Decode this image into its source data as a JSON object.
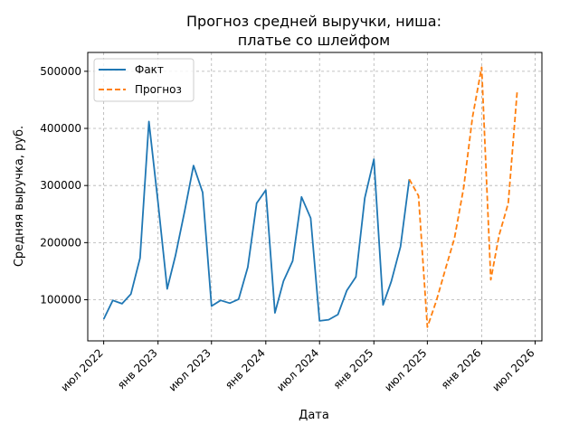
{
  "chart_data": {
    "type": "line",
    "title_lines": [
      "Прогноз средней выручки, ниша:",
      "платье со шлейфом"
    ],
    "xlabel": "Дата",
    "ylabel": "Средняя выручка, руб.",
    "xlim": [
      "2022-05-08",
      "2026-07-24"
    ],
    "ylim": [
      28000,
      533000
    ],
    "x_ticks": [
      {
        "date": "2022-07-01",
        "label": "июл 2022"
      },
      {
        "date": "2023-01-01",
        "label": "янв 2023"
      },
      {
        "date": "2023-07-01",
        "label": "июл 2023"
      },
      {
        "date": "2024-01-01",
        "label": "янв 2024"
      },
      {
        "date": "2024-07-01",
        "label": "июл 2024"
      },
      {
        "date": "2025-01-01",
        "label": "янв 2025"
      },
      {
        "date": "2025-07-01",
        "label": "июл 2025"
      },
      {
        "date": "2026-01-01",
        "label": "янв 2026"
      },
      {
        "date": "2026-07-01",
        "label": "июл 2026"
      }
    ],
    "y_ticks": [
      100000,
      200000,
      300000,
      400000,
      500000
    ],
    "grid": true,
    "legend_position": "top-left",
    "series": [
      {
        "name": "Факт",
        "color": "#1f77b4",
        "style": "solid",
        "points": [
          [
            "2022-07-01",
            66000
          ],
          [
            "2022-08-01",
            99000
          ],
          [
            "2022-09-01",
            93000
          ],
          [
            "2022-10-01",
            110000
          ],
          [
            "2022-11-01",
            173000
          ],
          [
            "2022-12-01",
            412000
          ],
          [
            "2023-01-01",
            270000
          ],
          [
            "2023-02-01",
            119000
          ],
          [
            "2023-03-01",
            177000
          ],
          [
            "2023-04-01",
            255000
          ],
          [
            "2023-05-01",
            335000
          ],
          [
            "2023-06-01",
            288000
          ],
          [
            "2023-07-01",
            89000
          ],
          [
            "2023-08-01",
            99000
          ],
          [
            "2023-09-01",
            94000
          ],
          [
            "2023-10-01",
            101000
          ],
          [
            "2023-11-01",
            157000
          ],
          [
            "2023-12-01",
            269000
          ],
          [
            "2024-01-01",
            292000
          ],
          [
            "2024-02-01",
            77000
          ],
          [
            "2024-03-01",
            133000
          ],
          [
            "2024-04-01",
            168000
          ],
          [
            "2024-05-01",
            280000
          ],
          [
            "2024-06-01",
            243000
          ],
          [
            "2024-07-01",
            63000
          ],
          [
            "2024-08-01",
            65000
          ],
          [
            "2024-09-01",
            74000
          ],
          [
            "2024-10-01",
            116000
          ],
          [
            "2024-11-01",
            140000
          ],
          [
            "2024-12-01",
            278000
          ],
          [
            "2025-01-01",
            346000
          ],
          [
            "2025-02-01",
            91000
          ],
          [
            "2025-03-01",
            132000
          ],
          [
            "2025-04-01",
            193000
          ],
          [
            "2025-05-01",
            311000
          ]
        ]
      },
      {
        "name": "Прогноз",
        "color": "#ff7f0e",
        "style": "dashed",
        "points": [
          [
            "2025-05-01",
            311000
          ],
          [
            "2025-06-01",
            282000
          ],
          [
            "2025-07-01",
            52000
          ],
          [
            "2025-08-01",
            99000
          ],
          [
            "2025-09-01",
            155000
          ],
          [
            "2025-10-01",
            208000
          ],
          [
            "2025-11-01",
            296000
          ],
          [
            "2025-12-01",
            420000
          ],
          [
            "2026-01-01",
            507000
          ],
          [
            "2026-02-01",
            135000
          ],
          [
            "2026-03-01",
            213000
          ],
          [
            "2026-04-01",
            269000
          ],
          [
            "2026-05-01",
            464000
          ]
        ]
      }
    ]
  }
}
